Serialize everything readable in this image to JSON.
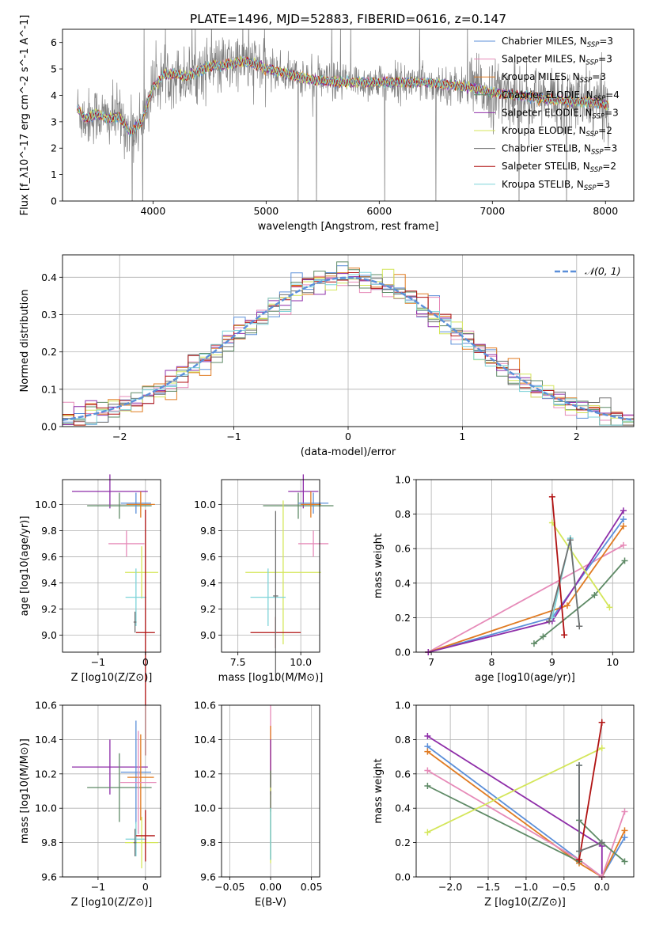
{
  "title": "PLATE=1496, MJD=52883, FIBERID=0616, z=0.147",
  "colors": {
    "chabrier_miles": "#5b8fd9",
    "salpeter_miles": "#e68ab8",
    "kroupa_miles": "#e07b22",
    "chabrier_elodie": "#5e8a66",
    "salpeter_elodie": "#8e2da8",
    "kroupa_elodie": "#d4e65a",
    "chabrier_stelib": "#707070",
    "salpeter_stelib": "#b01212",
    "kroupa_stelib": "#7dd3d8",
    "normal_curve": "#5b8fd9"
  },
  "chart_data": [
    {
      "id": "spectrum",
      "type": "line",
      "xlabel": "wavelength [Angstrom, rest frame]",
      "ylabel": "Flux [f_λ10^-17 erg cm^-2 s^-1 A^-1]",
      "xlim": [
        3200,
        8250
      ],
      "ylim": [
        0,
        6.5
      ],
      "xticks": [
        4000,
        5000,
        6000,
        7000,
        8000
      ],
      "yticks": [
        0,
        1,
        2,
        3,
        4,
        5,
        6
      ],
      "grid": false,
      "legend": "upper right",
      "legend_entries": [
        {
          "base": "Chabrier MILES, N",
          "sub": "SSP",
          "tail": "=3",
          "color_key": "chabrier_miles"
        },
        {
          "base": "Salpeter MILES, N",
          "sub": "SSP",
          "tail": "=3",
          "color_key": "salpeter_miles"
        },
        {
          "base": "Kroupa MILES, N",
          "sub": "SSP",
          "tail": "=3",
          "color_key": "kroupa_miles"
        },
        {
          "base": "Chabrier ELODIE, N",
          "sub": "SSP",
          "tail": "=4",
          "color_key": "chabrier_elodie"
        },
        {
          "base": "Salpeter ELODIE, N",
          "sub": "SSP",
          "tail": "=3",
          "color_key": "salpeter_elodie"
        },
        {
          "base": "Kroupa ELODIE, N",
          "sub": "SSP",
          "tail": "=2",
          "color_key": "kroupa_elodie"
        },
        {
          "base": "Chabrier STELIB, N",
          "sub": "SSP",
          "tail": "=3",
          "color_key": "chabrier_stelib"
        },
        {
          "base": "Salpeter STELIB, N",
          "sub": "SSP",
          "tail": "=2",
          "color_key": "salpeter_stelib"
        },
        {
          "base": "Kroupa STELIB, N",
          "sub": "SSP",
          "tail": "=3",
          "color_key": "kroupa_stelib"
        }
      ],
      "model_anchor_points": [
        [
          3330,
          3.5
        ],
        [
          3400,
          3.1
        ],
        [
          3500,
          3.3
        ],
        [
          3600,
          3.1
        ],
        [
          3700,
          3.2
        ],
        [
          3800,
          2.6
        ],
        [
          3900,
          3.0
        ],
        [
          4000,
          4.3
        ],
        [
          4100,
          4.8
        ],
        [
          4200,
          4.8
        ],
        [
          4300,
          4.7
        ],
        [
          4400,
          4.9
        ],
        [
          4500,
          5.1
        ],
        [
          4600,
          5.1
        ],
        [
          4700,
          5.2
        ],
        [
          4800,
          5.3
        ],
        [
          4900,
          5.2
        ],
        [
          5000,
          5.0
        ],
        [
          5200,
          4.8
        ],
        [
          5400,
          4.6
        ],
        [
          5600,
          4.5
        ],
        [
          5800,
          4.5
        ],
        [
          6000,
          4.5
        ],
        [
          6200,
          4.5
        ],
        [
          6400,
          4.5
        ],
        [
          6600,
          4.4
        ],
        [
          6800,
          4.3
        ],
        [
          7000,
          4.1
        ],
        [
          7200,
          4.0
        ],
        [
          7400,
          3.9
        ],
        [
          7600,
          3.8
        ],
        [
          7800,
          3.75
        ],
        [
          7950,
          3.7
        ],
        [
          8030,
          3.6
        ]
      ]
    },
    {
      "id": "residuals",
      "type": "line",
      "xlabel": "(data-model)/error",
      "ylabel": "Normed distribution",
      "xlim": [
        -2.5,
        2.5
      ],
      "ylim": [
        0,
        0.46
      ],
      "xticks": [
        -2,
        -1,
        0,
        1,
        2
      ],
      "yticks": [
        0.0,
        0.1,
        0.2,
        0.3,
        0.4
      ],
      "grid": true,
      "legend": "upper right",
      "legend_label": "𝒩(0, 1)",
      "bin_width": 0.1
    },
    {
      "id": "age_vs_Z",
      "type": "scatter",
      "xlabel": "Z [log10(Z/Z⊙)]",
      "ylabel": "age [log10(age/yr)]",
      "xlim": [
        -1.75,
        0.32
      ],
      "ylim": [
        8.87,
        10.19
      ],
      "xticks": [
        -1,
        0
      ],
      "yticks": [
        9.0,
        9.2,
        9.4,
        9.6,
        9.8,
        10.0
      ],
      "grid": true,
      "points": [
        {
          "color_key": "salpeter_elodie",
          "x": -0.75,
          "xerr": 0.8,
          "y": 10.1,
          "yerr": 0.13
        },
        {
          "color_key": "chabrier_elodie",
          "x": -0.55,
          "xerr": 0.68,
          "y": 9.99,
          "yerr": 0.1
        },
        {
          "color_key": "chabrier_miles",
          "x": -0.2,
          "xerr": 0.32,
          "y": 10.01,
          "yerr": 0.08
        },
        {
          "color_key": "kroupa_miles",
          "x": -0.1,
          "xerr": 0.3,
          "y": 10.0,
          "yerr": 0.1
        },
        {
          "color_key": "salpeter_miles",
          "x": -0.4,
          "xerr": 0.38,
          "y": 9.7,
          "yerr": 0.1
        },
        {
          "color_key": "kroupa_elodie",
          "x": -0.08,
          "xerr": 0.35,
          "y": 9.48,
          "yerr": 0.2
        },
        {
          "color_key": "kroupa_stelib",
          "x": -0.2,
          "xerr": 0.22,
          "y": 9.29,
          "yerr": 0.22
        },
        {
          "color_key": "salpeter_stelib",
          "x": 0.0,
          "xerr": 0.2,
          "y": 9.02,
          "yerr": 0.94
        },
        {
          "color_key": "chabrier_stelib",
          "x": -0.22,
          "xerr": 0.03,
          "y": 9.1,
          "yerr": 0.08
        }
      ]
    },
    {
      "id": "age_vs_mass",
      "type": "scatter",
      "xlabel": "mass [log10(M/M⊙)]",
      "ylabel": "",
      "xlim": [
        6.85,
        10.75
      ],
      "ylim": [
        8.87,
        10.19
      ],
      "xticks": [
        7.5,
        10.0
      ],
      "xticklabels": [
        "7.5",
        "10.0"
      ],
      "yticks": [
        9.0,
        9.2,
        9.4,
        9.6,
        9.8,
        10.0
      ],
      "grid": true,
      "points": [
        {
          "color_key": "salpeter_elodie",
          "x": 10.1,
          "xerr": 0.6,
          "y": 10.1,
          "yerr": 0.13
        },
        {
          "color_key": "chabrier_elodie",
          "x": 9.9,
          "xerr": 1.4,
          "y": 9.99,
          "yerr": 0.1
        },
        {
          "color_key": "chabrier_miles",
          "x": 10.5,
          "xerr": 0.6,
          "y": 10.01,
          "yerr": 0.08
        },
        {
          "color_key": "kroupa_miles",
          "x": 10.4,
          "xerr": 0.4,
          "y": 10.0,
          "yerr": 0.1
        },
        {
          "color_key": "salpeter_miles",
          "x": 10.5,
          "xerr": 0.6,
          "y": 9.7,
          "yerr": 0.1
        },
        {
          "color_key": "kroupa_elodie",
          "x": 9.3,
          "xerr": 1.5,
          "y": 9.48,
          "yerr": 0.55
        },
        {
          "color_key": "kroupa_stelib",
          "x": 8.7,
          "xerr": 0.7,
          "y": 9.29,
          "yerr": 0.22
        },
        {
          "color_key": "salpeter_stelib",
          "x": 9.0,
          "xerr": 1.0,
          "y": 9.02,
          "yerr": 0.12
        },
        {
          "color_key": "chabrier_stelib",
          "x": 9.0,
          "xerr": 0.1,
          "y": 9.3,
          "yerr": 0.65
        }
      ]
    },
    {
      "id": "massweight_vs_age",
      "type": "line",
      "xlabel": "age [log10(age/yr)]",
      "ylabel": "mass weight",
      "xlim": [
        6.75,
        10.35
      ],
      "ylim": [
        0,
        1.0
      ],
      "xticks": [
        7,
        8,
        9,
        10
      ],
      "yticks": [
        0.0,
        0.2,
        0.4,
        0.6,
        0.8,
        1.0
      ],
      "grid": true,
      "series": [
        {
          "color_key": "salpeter_miles",
          "x": [
            6.95,
            10.18
          ],
          "y": [
            0.0,
            0.62
          ]
        },
        {
          "color_key": "chabrier_miles",
          "x": [
            6.95,
            9.0,
            10.18
          ],
          "y": [
            0.0,
            0.2,
            0.77
          ]
        },
        {
          "color_key": "kroupa_miles",
          "x": [
            6.95,
            9.25,
            10.18
          ],
          "y": [
            0.0,
            0.27,
            0.73
          ]
        },
        {
          "color_key": "salpeter_elodie",
          "x": [
            6.95,
            9.0,
            10.18
          ],
          "y": [
            0.0,
            0.18,
            0.82
          ]
        },
        {
          "color_key": "chabrier_elodie",
          "x": [
            8.7,
            8.85,
            9.7,
            10.2
          ],
          "y": [
            0.05,
            0.09,
            0.33,
            0.53
          ]
        },
        {
          "color_key": "kroupa_elodie",
          "x": [
            9.0,
            9.95
          ],
          "y": [
            0.75,
            0.26
          ]
        },
        {
          "color_key": "kroupa_stelib",
          "x": [
            9.0,
            9.3,
            9.45
          ],
          "y": [
            0.2,
            0.66,
            0.15
          ]
        },
        {
          "color_key": "chabrier_stelib",
          "x": [
            8.95,
            9.3,
            9.45
          ],
          "y": [
            0.18,
            0.65,
            0.15
          ]
        },
        {
          "color_key": "salpeter_stelib",
          "x": [
            9.0,
            9.2
          ],
          "y": [
            0.9,
            0.1
          ]
        }
      ]
    },
    {
      "id": "mass_vs_Z",
      "type": "scatter",
      "xlabel": "Z [log10(Z/Z⊙)]",
      "ylabel": "mass [log10(M/M⊙)]",
      "xlim": [
        -1.75,
        0.32
      ],
      "ylim": [
        9.6,
        10.6
      ],
      "xticks": [
        -1,
        0
      ],
      "yticks": [
        9.6,
        9.8,
        10.0,
        10.2,
        10.4,
        10.6
      ],
      "grid": true,
      "points": [
        {
          "color_key": "salpeter_elodie",
          "x": -0.75,
          "xerr": 0.8,
          "y": 10.24,
          "yerr": 0.16
        },
        {
          "color_key": "chabrier_elodie",
          "x": -0.55,
          "xerr": 0.68,
          "y": 10.12,
          "yerr": 0.2
        },
        {
          "color_key": "chabrier_miles",
          "x": -0.2,
          "xerr": 0.32,
          "y": 10.21,
          "yerr": 0.3
        },
        {
          "color_key": "kroupa_miles",
          "x": -0.1,
          "xerr": 0.28,
          "y": 10.18,
          "yerr": 0.25
        },
        {
          "color_key": "salpeter_miles",
          "x": -0.15,
          "xerr": 0.38,
          "y": 10.15,
          "yerr": 0.3
        },
        {
          "color_key": "kroupa_elodie",
          "x": -0.08,
          "xerr": 0.35,
          "y": 9.8,
          "yerr": 0.15
        },
        {
          "color_key": "kroupa_stelib",
          "x": -0.2,
          "xerr": 0.22,
          "y": 9.82,
          "yerr": 0.1
        },
        {
          "color_key": "salpeter_stelib",
          "x": 0.0,
          "xerr": 0.2,
          "y": 9.84,
          "yerr": 0.15
        },
        {
          "color_key": "chabrier_stelib",
          "x": -0.22,
          "xerr": 0.03,
          "y": 9.8,
          "yerr": 0.08
        }
      ]
    },
    {
      "id": "mass_vs_ebv",
      "type": "scatter",
      "xlabel": "E(B-V)",
      "ylabel": "",
      "xlim": [
        -0.06,
        0.06
      ],
      "ylim": [
        9.6,
        10.6
      ],
      "xticks": [
        -0.05,
        0.0,
        0.05
      ],
      "xticklabels": [
        "−0.05",
        "0.00",
        "0.05"
      ],
      "yticks": [
        9.6,
        9.8,
        10.0,
        10.2,
        10.4,
        10.6
      ],
      "grid": true,
      "points": [
        {
          "color_key": "salpeter_miles",
          "x": 0.0,
          "y": 10.35,
          "yerr": 0.25
        },
        {
          "color_key": "kroupa_miles",
          "x": 0.0,
          "y": 10.3,
          "yerr": 0.18
        },
        {
          "color_key": "salpeter_elodie",
          "x": 0.0,
          "y": 10.24,
          "yerr": 0.16
        },
        {
          "color_key": "chabrier_elodie",
          "x": 0.0,
          "y": 10.1,
          "yerr": 0.12
        },
        {
          "color_key": "kroupa_elodie",
          "x": 0.0,
          "y": 9.9,
          "yerr": 0.22
        },
        {
          "color_key": "chabrier_stelib",
          "x": 0.0,
          "y": 9.9,
          "yerr": 0.2
        },
        {
          "color_key": "kroupa_stelib",
          "x": 0.0,
          "y": 9.85,
          "yerr": 0.15
        }
      ]
    },
    {
      "id": "massweight_vs_Z",
      "type": "line",
      "xlabel": "Z [log10(Z/Z⊙)]",
      "ylabel": "mass weight",
      "xlim": [
        -2.45,
        0.42
      ],
      "ylim": [
        0,
        1.0
      ],
      "xticks": [
        -2.0,
        -1.5,
        -1.0,
        -0.5,
        0.0
      ],
      "yticks": [
        0.0,
        0.2,
        0.4,
        0.6,
        0.8,
        1.0
      ],
      "grid": true,
      "series": [
        {
          "color_key": "salpeter_elodie",
          "x": [
            -2.3,
            0.0,
            0.0
          ],
          "y": [
            0.82,
            0.18,
            0.0
          ]
        },
        {
          "color_key": "chabrier_miles",
          "x": [
            -2.3,
            -0.3,
            0.0,
            0.3
          ],
          "y": [
            0.76,
            0.1,
            0.0,
            0.23
          ]
        },
        {
          "color_key": "kroupa_miles",
          "x": [
            -2.3,
            -0.3,
            0.0,
            0.3
          ],
          "y": [
            0.73,
            0.08,
            0.0,
            0.27
          ]
        },
        {
          "color_key": "salpeter_miles",
          "x": [
            -2.3,
            -0.3,
            0.0,
            0.3
          ],
          "y": [
            0.62,
            0.1,
            0.0,
            0.38
          ]
        },
        {
          "color_key": "chabrier_elodie",
          "x": [
            -2.3,
            -0.3,
            -0.3,
            0.0,
            0.3
          ],
          "y": [
            0.53,
            0.09,
            0.33,
            0.2,
            0.09
          ]
        },
        {
          "color_key": "kroupa_elodie",
          "x": [
            -2.3,
            0.0
          ],
          "y": [
            0.26,
            0.75
          ]
        },
        {
          "color_key": "salpeter_stelib",
          "x": [
            -0.3,
            0.0,
            0.0
          ],
          "y": [
            0.1,
            0.9,
            0.9
          ]
        },
        {
          "color_key": "kroupa_stelib",
          "x": [
            -0.3,
            -0.3,
            0.0
          ],
          "y": [
            0.65,
            0.15,
            0.2
          ]
        },
        {
          "color_key": "chabrier_stelib",
          "x": [
            -0.3,
            -0.3,
            0.0
          ],
          "y": [
            0.65,
            0.15,
            0.2
          ]
        }
      ]
    }
  ]
}
